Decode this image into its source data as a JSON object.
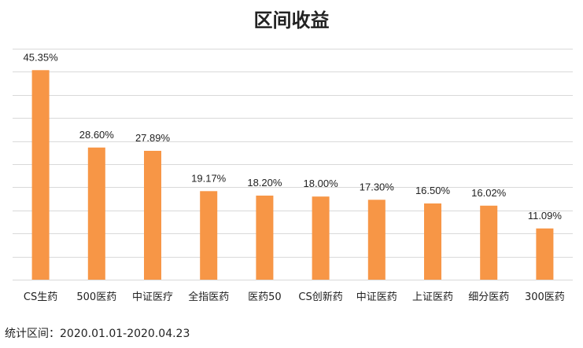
{
  "chart_data": {
    "type": "bar",
    "title": "区间收益",
    "categories": [
      "CS生药",
      "500医药",
      "中证医疗",
      "全指医药",
      "医药50",
      "CS创新药",
      "中证医药",
      "上证医药",
      "细分医药",
      "300医药"
    ],
    "values": [
      45.35,
      28.6,
      27.89,
      19.17,
      18.2,
      18.0,
      17.3,
      16.5,
      16.02,
      11.09
    ],
    "data_labels": [
      "45.35%",
      "28.60%",
      "27.89%",
      "19.17%",
      "18.20%",
      "18.00%",
      "17.30%",
      "16.50%",
      "16.02%",
      "11.09%"
    ],
    "ylim": [
      0,
      50
    ],
    "grid": true,
    "bar_color": "#F79646",
    "grid_color": "#D9D9D9"
  },
  "footnote": "统计区间：2020.01.01-2020.04.23"
}
